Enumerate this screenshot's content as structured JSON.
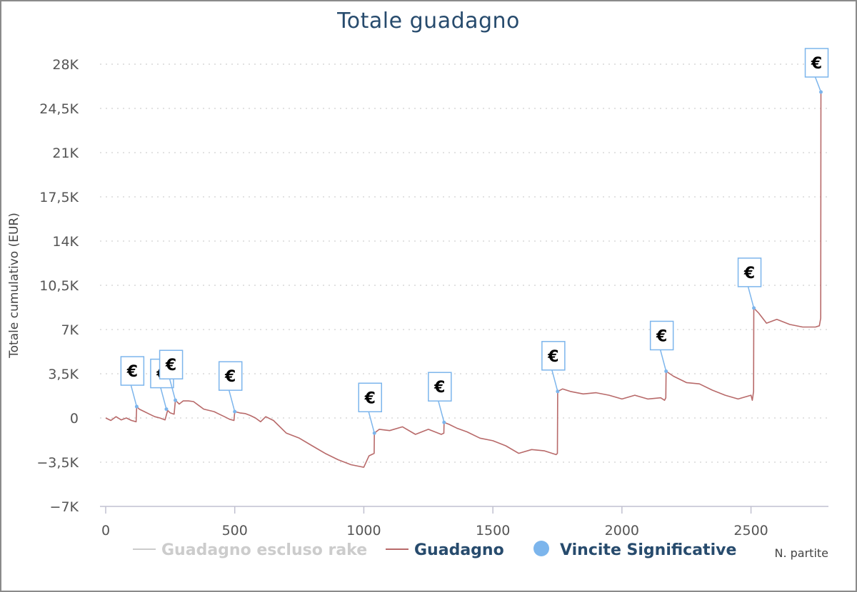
{
  "chart_data": {
    "type": "line",
    "title": "Totale guadagno",
    "ylabel": "Totale cumulativo (EUR)",
    "xlabel": "N. partite",
    "xlim": [
      0,
      2800
    ],
    "ylim": [
      -7000,
      28000
    ],
    "xticks": [
      0,
      500,
      1000,
      1500,
      2000,
      2500
    ],
    "xtick_labels": [
      "0",
      "500",
      "1000",
      "1500",
      "2000",
      "2500"
    ],
    "yticks": [
      -7000,
      -3500,
      0,
      3500,
      7000,
      10500,
      14000,
      17500,
      21000,
      24500,
      28000
    ],
    "ytick_labels": [
      "-7K",
      "-3,5K",
      "0",
      "3,5K",
      "7K",
      "10,5K",
      "14K",
      "17,5K",
      "21K",
      "24,5K",
      "28K"
    ],
    "grid": "horizontal-dotted",
    "legend_placement": "bottom",
    "series": [
      {
        "name": "Guadagno escluso rake",
        "color": "#cccccc",
        "hidden": true,
        "x": [],
        "y": []
      },
      {
        "name": "Guadagno",
        "color": "#b86a6a",
        "x": [
          0,
          20,
          40,
          60,
          80,
          100,
          118,
          120,
          130,
          150,
          170,
          190,
          210,
          230,
          240,
          250,
          265,
          270,
          285,
          300,
          320,
          340,
          360,
          380,
          400,
          420,
          440,
          460,
          480,
          497,
          500,
          520,
          540,
          560,
          580,
          600,
          620,
          650,
          700,
          750,
          800,
          850,
          900,
          950,
          1000,
          1020,
          1040,
          1041,
          1060,
          1100,
          1150,
          1200,
          1250,
          1300,
          1310,
          1311,
          1330,
          1360,
          1400,
          1450,
          1500,
          1550,
          1600,
          1650,
          1700,
          1745,
          1750,
          1751,
          1770,
          1800,
          1850,
          1900,
          1950,
          2000,
          2050,
          2100,
          2150,
          2165,
          2170,
          2171,
          2200,
          2250,
          2300,
          2350,
          2400,
          2450,
          2500,
          2505,
          2510,
          2511,
          2530,
          2560,
          2600,
          2650,
          2700,
          2750,
          2765,
          2770,
          2771
        ],
        "y": [
          0,
          -200,
          100,
          -150,
          0,
          -200,
          -300,
          900,
          700,
          500,
          300,
          100,
          0,
          -150,
          600,
          400,
          300,
          1400,
          1100,
          1350,
          1350,
          1300,
          1000,
          700,
          600,
          500,
          300,
          100,
          -100,
          -200,
          500,
          400,
          350,
          200,
          0,
          -300,
          100,
          -200,
          -1200,
          -1600,
          -2200,
          -2800,
          -3300,
          -3700,
          -3900,
          -3000,
          -2800,
          -1200,
          -900,
          -1000,
          -700,
          -1300,
          -900,
          -1300,
          -1200,
          -350,
          -500,
          -800,
          -1100,
          -1600,
          -1800,
          -2200,
          -2800,
          -2500,
          -2600,
          -2900,
          -2800,
          2100,
          2300,
          2100,
          1900,
          2000,
          1800,
          1500,
          1800,
          1500,
          1600,
          1400,
          1600,
          3700,
          3300,
          2800,
          2700,
          2200,
          1800,
          1500,
          1800,
          1400,
          2100,
          8700,
          8300,
          7500,
          7800,
          7400,
          7200,
          7200,
          7300,
          7900,
          25800
        ]
      },
      {
        "name": "Vincite Significative",
        "color": "#7cb5ec",
        "marker": "€",
        "x": [
          120,
          235,
          270,
          500,
          1041,
          1311,
          1751,
          2171,
          2511,
          2771
        ],
        "y": [
          900,
          700,
          1400,
          500,
          -1200,
          -350,
          2100,
          3700,
          8700,
          25800
        ]
      }
    ]
  }
}
